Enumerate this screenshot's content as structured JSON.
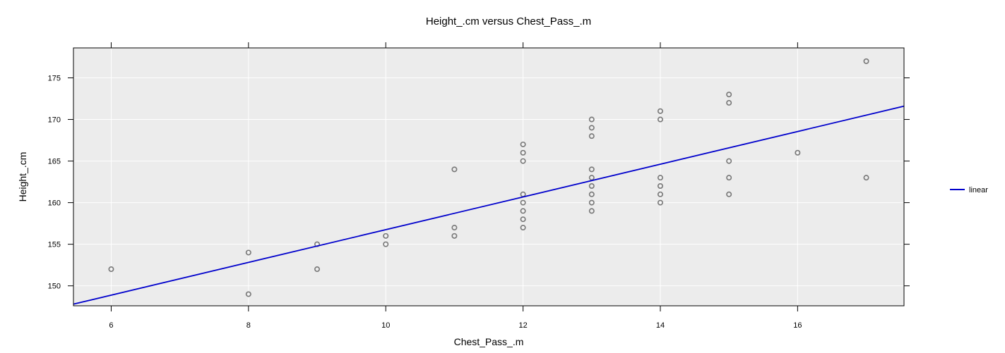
{
  "chart_data": {
    "type": "scatter",
    "title": "Height_.cm versus Chest_Pass_.m",
    "xlabel": "Chest_Pass_.m",
    "ylabel": "Height_.cm",
    "xlim": [
      5.45,
      17.55
    ],
    "ylim": [
      147.6,
      178.6
    ],
    "x_ticks": [
      6,
      8,
      10,
      12,
      14,
      16
    ],
    "y_ticks": [
      150,
      155,
      160,
      165,
      170,
      175
    ],
    "grid": true,
    "legend_position": "right",
    "colors": {
      "panel_bg": "#ececec",
      "grid": "#ffffff",
      "points": "#777777",
      "fit_line": "#0000cc"
    },
    "points": [
      [
        6,
        152
      ],
      [
        8,
        154
      ],
      [
        8,
        149
      ],
      [
        9,
        155
      ],
      [
        9,
        152
      ],
      [
        10,
        156
      ],
      [
        10,
        155
      ],
      [
        11,
        164
      ],
      [
        11,
        157
      ],
      [
        11,
        156
      ],
      [
        12,
        167
      ],
      [
        12,
        166
      ],
      [
        12,
        165
      ],
      [
        12,
        161
      ],
      [
        12,
        160
      ],
      [
        12,
        159
      ],
      [
        12,
        158
      ],
      [
        12,
        157
      ],
      [
        13,
        170
      ],
      [
        13,
        169
      ],
      [
        13,
        168
      ],
      [
        13,
        164
      ],
      [
        13,
        163
      ],
      [
        13,
        162
      ],
      [
        13,
        161
      ],
      [
        13,
        160
      ],
      [
        13,
        159
      ],
      [
        14,
        171
      ],
      [
        14,
        170
      ],
      [
        14,
        163
      ],
      [
        14,
        162
      ],
      [
        14,
        161
      ],
      [
        14,
        160
      ],
      [
        15,
        173
      ],
      [
        15,
        172
      ],
      [
        15,
        165
      ],
      [
        15,
        163
      ],
      [
        15,
        161
      ],
      [
        16,
        166
      ],
      [
        17,
        177
      ],
      [
        17,
        163
      ]
    ],
    "series": [
      {
        "name": "linear",
        "line": [
          [
            5.45,
            147.8
          ],
          [
            17.55,
            171.6
          ]
        ]
      }
    ]
  }
}
